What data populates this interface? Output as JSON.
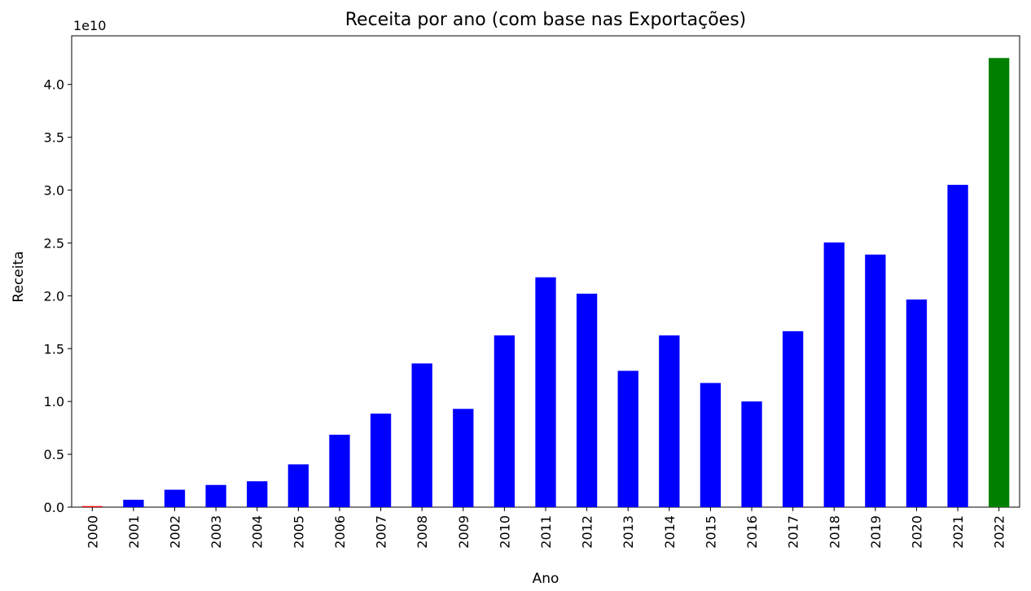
{
  "chart_data": {
    "type": "bar",
    "title": "Receita por ano (com base nas Exportações)",
    "xlabel": "Ano",
    "ylabel": "Receita",
    "offset_text": "1e10",
    "categories": [
      "2000",
      "2001",
      "2002",
      "2003",
      "2004",
      "2005",
      "2006",
      "2007",
      "2008",
      "2009",
      "2010",
      "2011",
      "2012",
      "2013",
      "2014",
      "2015",
      "2016",
      "2017",
      "2018",
      "2019",
      "2020",
      "2021",
      "2022"
    ],
    "values": [
      0.1,
      0.7,
      1.65,
      2.1,
      2.45,
      4.05,
      6.85,
      8.85,
      13.6,
      9.3,
      16.25,
      21.75,
      20.2,
      12.9,
      16.25,
      11.75,
      10.0,
      16.65,
      25.05,
      23.9,
      19.65,
      30.5,
      42.5
    ],
    "value_scale": 1000000000.0,
    "bar_colors": [
      "#ff0000",
      "#0000ff",
      "#0000ff",
      "#0000ff",
      "#0000ff",
      "#0000ff",
      "#0000ff",
      "#0000ff",
      "#0000ff",
      "#0000ff",
      "#0000ff",
      "#0000ff",
      "#0000ff",
      "#0000ff",
      "#0000ff",
      "#0000ff",
      "#0000ff",
      "#0000ff",
      "#0000ff",
      "#0000ff",
      "#0000ff",
      "#0000ff",
      "#008000"
    ],
    "y_ticks": [
      "0.0",
      "0.5",
      "1.0",
      "1.5",
      "2.0",
      "2.5",
      "3.0",
      "3.5",
      "4.0"
    ],
    "y_tick_values": [
      0,
      5,
      10,
      15,
      20,
      25,
      30,
      35,
      40
    ],
    "ylim": [
      0,
      44.6
    ],
    "grid": false,
    "legend": "none"
  }
}
